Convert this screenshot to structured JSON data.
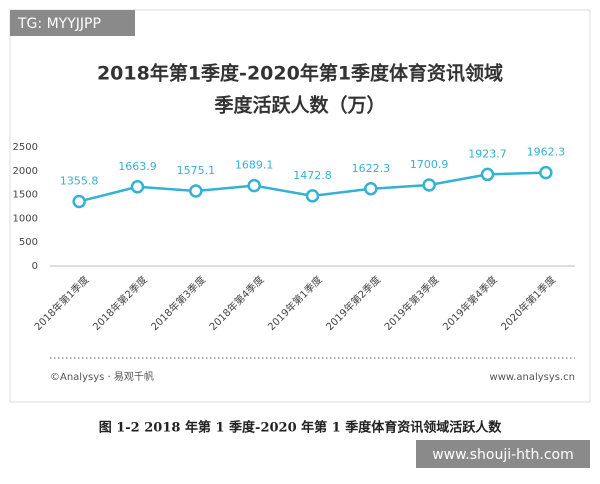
{
  "chart_data": {
    "type": "line",
    "title": "2018年第1季度-2020年第1季度体育资讯领域",
    "subtitle": "季度活跃人数（万）",
    "categories": [
      "2018年第1季度",
      "2018年第2季度",
      "2018年第3季度",
      "2018年第4季度",
      "2019年第1季度",
      "2019年第2季度",
      "2019年第3季度",
      "2019年第4季度",
      "2020年第1季度"
    ],
    "values": [
      1355.8,
      1663.9,
      1575.1,
      1689.1,
      1472.8,
      1622.3,
      1700.9,
      1923.7,
      1962.3
    ],
    "color": "#33b2d4",
    "ylim": [
      0,
      2500
    ],
    "yticks": [
      0,
      500,
      1000,
      1500,
      2000,
      2500
    ],
    "grid": false,
    "source": "©Analysys · 易观千帆",
    "website": "www.analysys.cn",
    "caption": "图 1-2  2018 年第 1 季度-2020 年第 1 季度体育资讯领域活跃人数",
    "watermark_top": "TG: MYYJJPP",
    "watermark_bottom": "www.shouji-hth.com"
  }
}
